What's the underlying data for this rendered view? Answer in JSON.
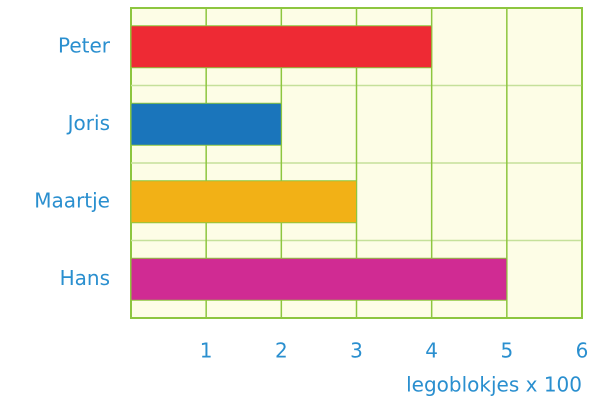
{
  "chart_data": {
    "type": "barh",
    "categories": [
      "Peter",
      "Joris",
      "Maartje",
      "Hans"
    ],
    "values": [
      4,
      2,
      3,
      5
    ],
    "colors": [
      "#ee2a34",
      "#1a75bb",
      "#f2b116",
      "#d02b93"
    ],
    "xlabel": "legoblokjes x 100",
    "xlim": [
      0,
      6
    ],
    "xticks": [
      1,
      2,
      3,
      4,
      5,
      6
    ],
    "grid": true
  }
}
